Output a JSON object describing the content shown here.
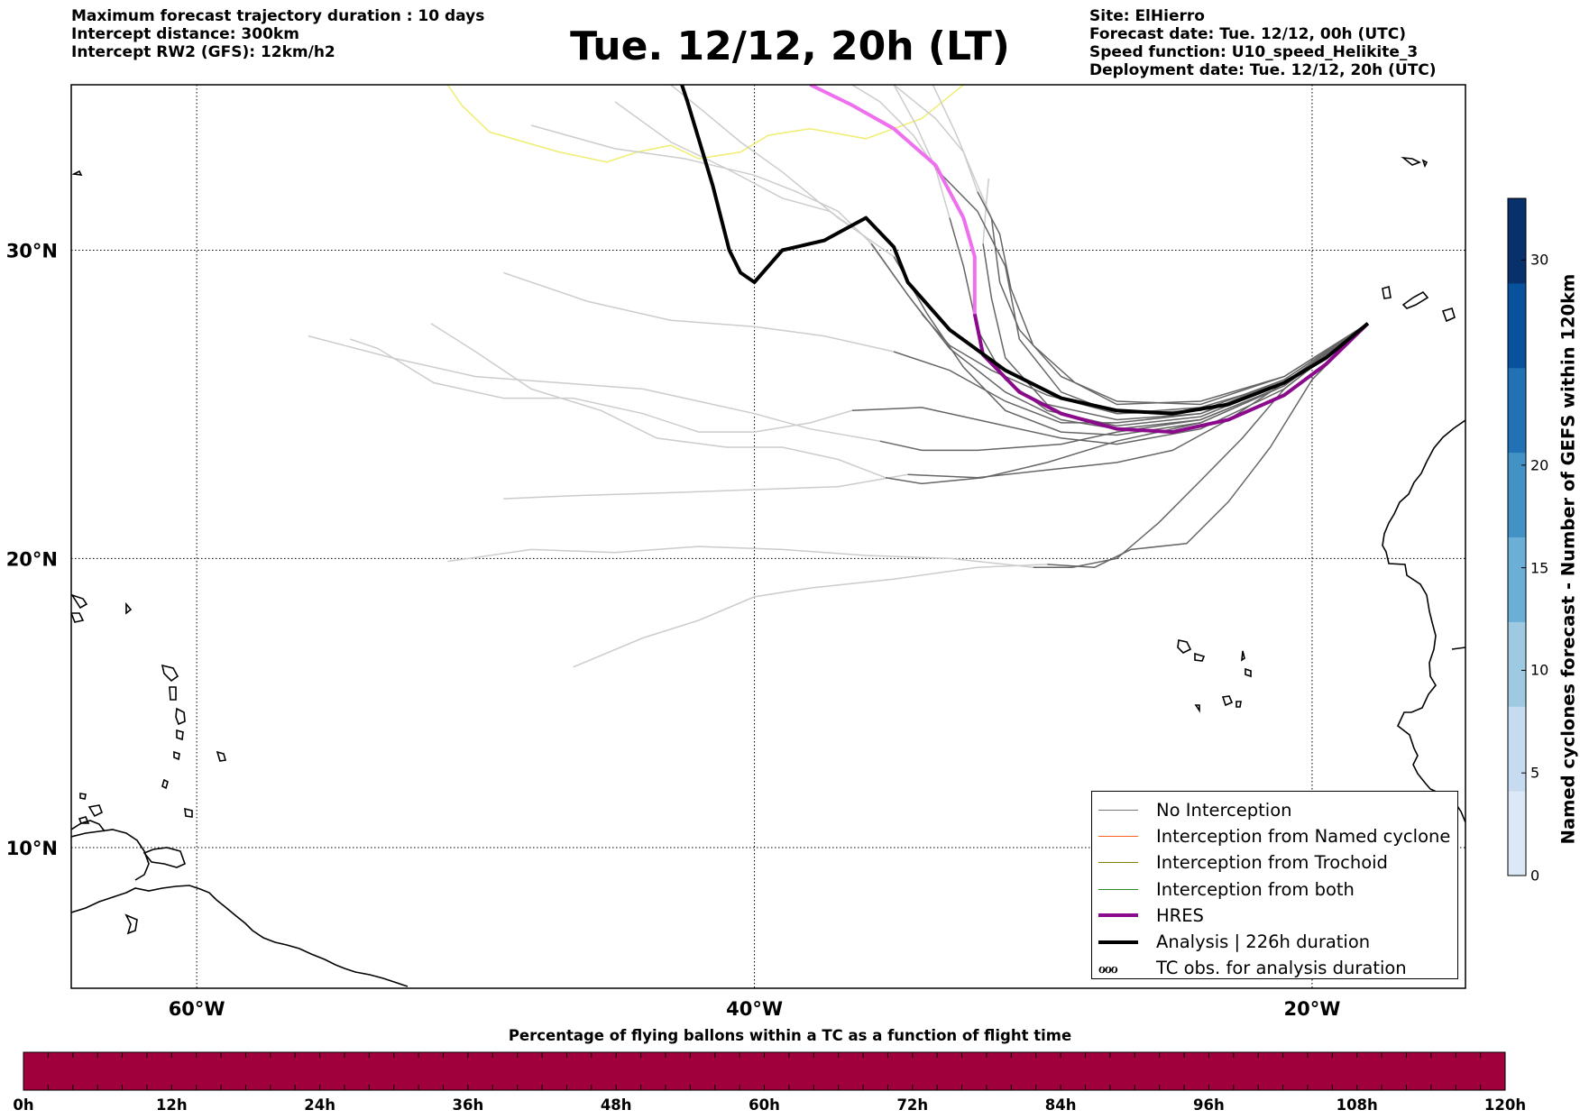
{
  "header": {
    "left_lines": [
      "Maximum forecast trajectory duration : 10 days",
      "Intercept distance: 300km",
      "Intercept RW2 (GFS):  12km/h2"
    ],
    "title": "Tue. 12/12, 20h (LT)",
    "right_lines": [
      "Site: ElHierro",
      "Forecast date: Tue. 12/12, 00h (UTC)",
      "Speed function: U10_speed_Helikite_3",
      "Deployment date: Tue. 12/12, 20h (UTC)"
    ]
  },
  "map": {
    "lon_range": [
      -64.5,
      -14.5
    ],
    "lat_range": [
      5,
      35
    ],
    "lon_ticks": [
      {
        "value": -60,
        "label": "60°W"
      },
      {
        "value": -40,
        "label": "40°W"
      },
      {
        "value": -20,
        "label": "20°W"
      }
    ],
    "lat_ticks": [
      {
        "value": 30,
        "label": "30°N"
      },
      {
        "value": 20,
        "label": "20°N"
      },
      {
        "value": 10,
        "label": "10°N"
      }
    ],
    "grid": true,
    "launch_site": {
      "name": "ElHierro",
      "lon": -18.0,
      "lat": 27.7
    },
    "colors": {
      "no_interception": "#666666",
      "no_interception_faded": "#cccccc",
      "named_cyclone": "#ff6020",
      "trochoid": "#808000",
      "both": "#2a8a2a",
      "hres": "#8b0a8b",
      "hres_faded": "#ee70ee",
      "analysis": "#000000",
      "yellow_track": "#eeee70"
    }
  },
  "legend": {
    "position": "lower-right",
    "items": [
      {
        "label": "No Interception",
        "color": "#777777",
        "width": 1.5,
        "kind": "line"
      },
      {
        "label": "Interception from Named cyclone",
        "color": "#ff6020",
        "width": 1.5,
        "kind": "line"
      },
      {
        "label": "Interception from Trochoid",
        "color": "#808000",
        "width": 1.5,
        "kind": "line"
      },
      {
        "label": "Interception from both",
        "color": "#2a8a2a",
        "width": 1.5,
        "kind": "line"
      },
      {
        "label": "HRES",
        "color": "#8b0a8b",
        "width": 4,
        "kind": "line"
      },
      {
        "label": "Analysis | 226h duration",
        "color": "#000000",
        "width": 4,
        "kind": "line"
      },
      {
        "label": "TC obs. for analysis duration",
        "glyph": "ℴℴℴ",
        "kind": "symbol"
      }
    ]
  },
  "bottom_colorbar": {
    "title": "Percentage of flying ballons within a TC as a function of flight time",
    "ticks": [
      "0h",
      "12h",
      "24h",
      "36h",
      "48h",
      "60h",
      "72h",
      "84h",
      "96h",
      "108h",
      "120h"
    ],
    "fill_color": "#a0003c"
  },
  "right_colorbar": {
    "title": "Named cyclones forecast - Number of GEFS within 120km",
    "range": [
      0,
      33
    ],
    "ticks": [
      0,
      5,
      10,
      15,
      20,
      30
    ],
    "colors": [
      "#dbe9f6",
      "#c6dbef",
      "#9ecae1",
      "#6baed6",
      "#4292c6",
      "#2171b5",
      "#08519c",
      "#08306b"
    ]
  },
  "chart_data": {
    "type": "trajectory-map",
    "launch": {
      "lon": -18.0,
      "lat": 27.7
    },
    "analysis": [
      [
        -18.0,
        27.7
      ],
      [
        -19.5,
        26.6
      ],
      [
        -21,
        25.8
      ],
      [
        -23,
        25.1
      ],
      [
        -25,
        24.8
      ],
      [
        -27,
        24.9
      ],
      [
        -29,
        25.3
      ],
      [
        -31,
        26.2
      ],
      [
        -33,
        27.5
      ],
      [
        -34.5,
        29
      ],
      [
        -35,
        30.1
      ],
      [
        -36,
        31
      ],
      [
        -37.5,
        30.3
      ],
      [
        -39,
        30
      ],
      [
        -40,
        29
      ],
      [
        -40.5,
        29.3
      ],
      [
        -40.9,
        30
      ],
      [
        -41.5,
        32
      ],
      [
        -42.4,
        34.5
      ],
      [
        -42.6,
        35
      ]
    ],
    "hres": [
      [
        -18.0,
        27.7
      ],
      [
        -19.5,
        26.4
      ],
      [
        -21,
        25.4
      ],
      [
        -23,
        24.6
      ],
      [
        -25,
        24.2
      ],
      [
        -27,
        24.3
      ],
      [
        -29,
        24.8
      ],
      [
        -30.5,
        25.5
      ],
      [
        -31.8,
        26.7
      ],
      [
        -32.1,
        28
      ],
      [
        -32.1,
        29.8
      ],
      [
        -32.5,
        31
      ],
      [
        -33.5,
        32.6
      ],
      [
        -35,
        33.7
      ],
      [
        -36.5,
        34.4
      ],
      [
        -38,
        35
      ]
    ],
    "ensemble_no_interception": [
      [
        [
          -18,
          27.7
        ],
        [
          -21,
          25.7
        ],
        [
          -24,
          24.5
        ],
        [
          -27,
          23.9
        ],
        [
          -29.5,
          23.2
        ],
        [
          -31.8,
          22.7
        ],
        [
          -34,
          22.5
        ],
        [
          -35.3,
          22.7
        ]
      ],
      [
        [
          -18,
          27.7
        ],
        [
          -21,
          25.7
        ],
        [
          -24,
          24.6
        ],
        [
          -27,
          24.2
        ],
        [
          -29,
          23.8
        ],
        [
          -32,
          23.6
        ],
        [
          -34,
          23.6
        ],
        [
          -35.5,
          23.9
        ]
      ],
      [
        [
          -18,
          27.7
        ],
        [
          -21,
          25.6
        ],
        [
          -22.5,
          24
        ],
        [
          -24,
          22.6
        ],
        [
          -25.5,
          21.2
        ],
        [
          -27,
          20
        ],
        [
          -28.6,
          19.7
        ],
        [
          -30,
          19.7
        ]
      ],
      [
        [
          -18,
          27.7
        ],
        [
          -20,
          25.9
        ],
        [
          -21.5,
          23.7
        ],
        [
          -23,
          21.9
        ],
        [
          -24.5,
          20.5
        ],
        [
          -26.5,
          20.3
        ],
        [
          -27.8,
          19.7
        ],
        [
          -29.5,
          19.8
        ]
      ],
      [
        [
          -18,
          27.7
        ],
        [
          -21,
          25.8
        ],
        [
          -23,
          24.6
        ],
        [
          -25,
          23.6
        ],
        [
          -27,
          23.2
        ],
        [
          -30,
          22.9
        ],
        [
          -32,
          22.7
        ],
        [
          -34.5,
          22.8
        ]
      ],
      [
        [
          -18,
          27.7
        ],
        [
          -21,
          25.8
        ],
        [
          -24,
          25
        ],
        [
          -27,
          24.8
        ],
        [
          -29.5,
          25.4
        ],
        [
          -31.5,
          26.2
        ],
        [
          -33,
          27
        ],
        [
          -34,
          28
        ]
      ],
      [
        [
          -18,
          27.7
        ],
        [
          -21,
          26
        ],
        [
          -24,
          25.1
        ],
        [
          -27,
          25.2
        ],
        [
          -29,
          26
        ],
        [
          -30.5,
          27.5
        ],
        [
          -31.2,
          29
        ],
        [
          -31.5,
          31
        ]
      ],
      [
        [
          -18,
          27.7
        ],
        [
          -21,
          25.9
        ],
        [
          -24,
          24.8
        ],
        [
          -27,
          24.5
        ],
        [
          -29,
          24.5
        ],
        [
          -31,
          25.2
        ],
        [
          -33,
          26.2
        ],
        [
          -35,
          26.8
        ]
      ],
      [
        [
          -18,
          27.7
        ],
        [
          -21,
          25.8
        ],
        [
          -24,
          24.7
        ],
        [
          -27,
          24.4
        ],
        [
          -29.5,
          24.9
        ],
        [
          -31,
          25.9
        ],
        [
          -32,
          27.5
        ],
        [
          -32.5,
          29.5
        ],
        [
          -33,
          31
        ]
      ],
      [
        [
          -18,
          27.7
        ],
        [
          -21,
          25.7
        ],
        [
          -24,
          24.5
        ],
        [
          -27,
          24.1
        ],
        [
          -29,
          24.2
        ],
        [
          -31,
          24.9
        ],
        [
          -32.5,
          26.3
        ],
        [
          -33.8,
          28
        ],
        [
          -35,
          29.8
        ]
      ],
      [
        [
          -18,
          27.7
        ],
        [
          -21,
          25.8
        ],
        [
          -24,
          24.8
        ],
        [
          -27,
          24.6
        ],
        [
          -29.5,
          25.1
        ],
        [
          -31,
          26.6
        ],
        [
          -31.5,
          28.5
        ],
        [
          -31.8,
          30.2
        ]
      ],
      [
        [
          -18,
          27.7
        ],
        [
          -21,
          26
        ],
        [
          -24,
          25.2
        ],
        [
          -27,
          25.1
        ],
        [
          -28.5,
          25.8
        ],
        [
          -30,
          27
        ],
        [
          -30.8,
          28.8
        ],
        [
          -31.2,
          30.5
        ],
        [
          -32,
          31.8
        ]
      ],
      [
        [
          -18,
          27.7
        ],
        [
          -21,
          25.9
        ],
        [
          -24,
          24.9
        ],
        [
          -27,
          24.8
        ],
        [
          -29,
          25.5
        ],
        [
          -30.5,
          27.2
        ],
        [
          -31,
          29.5
        ],
        [
          -32,
          31.2
        ],
        [
          -33.5,
          32.5
        ]
      ],
      [
        [
          -18,
          27.7
        ],
        [
          -21,
          25.6
        ],
        [
          -24,
          24.3
        ],
        [
          -27,
          23.8
        ],
        [
          -29,
          24
        ],
        [
          -31.5,
          24.5
        ],
        [
          -34,
          25
        ],
        [
          -36.5,
          24.9
        ]
      ],
      [
        [
          -18,
          27.7
        ],
        [
          -21,
          25.7
        ],
        [
          -24,
          24.6
        ],
        [
          -27,
          24.3
        ],
        [
          -29,
          24.6
        ],
        [
          -31,
          25.5
        ],
        [
          -33,
          26.9
        ],
        [
          -34.5,
          28.6
        ],
        [
          -35.8,
          30.2
        ]
      ]
    ],
    "ensemble_faded": [
      [
        [
          -35.3,
          22.7
        ],
        [
          -37,
          23.3
        ],
        [
          -39,
          23.7
        ],
        [
          -41,
          23.7
        ],
        [
          -43.5,
          24
        ],
        [
          -45.5,
          24.9
        ],
        [
          -48,
          25.6
        ],
        [
          -50,
          26.8
        ],
        [
          -51.6,
          27.7
        ]
      ],
      [
        [
          -35.5,
          23.9
        ],
        [
          -38,
          24.3
        ],
        [
          -40,
          24.8
        ],
        [
          -42,
          25.2
        ],
        [
          -44,
          25.6
        ],
        [
          -47,
          25.8
        ],
        [
          -50,
          26
        ],
        [
          -53,
          26.6
        ],
        [
          -56,
          27.3
        ]
      ],
      [
        [
          -30,
          19.7
        ],
        [
          -33,
          20
        ],
        [
          -36,
          20.1
        ],
        [
          -39,
          20.3
        ],
        [
          -42,
          20.4
        ],
        [
          -45,
          20.2
        ],
        [
          -48,
          20.3
        ],
        [
          -51,
          19.9
        ]
      ],
      [
        [
          -29.5,
          19.8
        ],
        [
          -32,
          19.7
        ],
        [
          -35,
          19.3
        ],
        [
          -38,
          19
        ],
        [
          -40,
          18.7
        ],
        [
          -42,
          17.9
        ],
        [
          -44,
          17.3
        ],
        [
          -46.5,
          16.3
        ]
      ],
      [
        [
          -34.5,
          22.8
        ],
        [
          -37,
          22.4
        ],
        [
          -40,
          22.3
        ],
        [
          -43,
          22.2
        ],
        [
          -46.5,
          22.1
        ],
        [
          -49,
          22
        ]
      ],
      [
        [
          -34,
          28
        ],
        [
          -35,
          29.2
        ],
        [
          -36,
          30.4
        ],
        [
          -37.3,
          31.2
        ],
        [
          -39,
          31.6
        ],
        [
          -41,
          32.5
        ],
        [
          -43,
          33.3
        ],
        [
          -45,
          34.5
        ]
      ],
      [
        [
          -31.5,
          31
        ],
        [
          -32.1,
          32.2
        ],
        [
          -32.8,
          33.6
        ],
        [
          -33.6,
          35
        ]
      ],
      [
        [
          -35,
          26.8
        ],
        [
          -37.5,
          27.3
        ],
        [
          -40,
          27.6
        ],
        [
          -43,
          27.8
        ],
        [
          -46,
          28.4
        ],
        [
          -49,
          29.3
        ]
      ],
      [
        [
          -33,
          31
        ],
        [
          -33.5,
          32.5
        ],
        [
          -34.2,
          33.8
        ],
        [
          -35,
          35
        ]
      ],
      [
        [
          -35,
          29.8
        ],
        [
          -37,
          31
        ],
        [
          -39,
          32.4
        ],
        [
          -40.5,
          33.3
        ],
        [
          -41.8,
          34.2
        ],
        [
          -43,
          35
        ]
      ],
      [
        [
          -31.8,
          30.2
        ],
        [
          -31.7,
          31.3
        ],
        [
          -31.6,
          32.2
        ]
      ],
      [
        [
          -32,
          31.8
        ],
        [
          -32.5,
          33
        ],
        [
          -33.5,
          34
        ],
        [
          -35,
          35
        ]
      ],
      [
        [
          -33.5,
          32.5
        ],
        [
          -34.3,
          33.5
        ],
        [
          -35.5,
          34.5
        ],
        [
          -36.5,
          35
        ]
      ],
      [
        [
          -36.5,
          24.9
        ],
        [
          -38,
          24.5
        ],
        [
          -40,
          24.2
        ],
        [
          -42,
          24.2
        ],
        [
          -44,
          24.8
        ],
        [
          -46.5,
          25.3
        ],
        [
          -49,
          25.3
        ],
        [
          -51.5,
          25.8
        ],
        [
          -53.5,
          26.9
        ],
        [
          -54.5,
          27.2
        ]
      ],
      [
        [
          -35.8,
          30.2
        ],
        [
          -37,
          31.2
        ],
        [
          -38.5,
          31.8
        ],
        [
          -40,
          32.3
        ],
        [
          -42.5,
          32.8
        ],
        [
          -45,
          33.1
        ],
        [
          -48,
          33.8
        ]
      ]
    ],
    "yellow_track": [
      [
        -32.5,
        35
      ],
      [
        -34,
        34
      ],
      [
        -36,
        33.4
      ],
      [
        -38,
        33.7
      ],
      [
        -39.5,
        33.5
      ],
      [
        -40.5,
        33
      ],
      [
        -42,
        32.8
      ],
      [
        -43,
        33.2
      ],
      [
        -44.2,
        33
      ],
      [
        -45.3,
        32.7
      ],
      [
        -47,
        33
      ],
      [
        -49.5,
        33.6
      ],
      [
        -50.5,
        34.4
      ],
      [
        -51,
        35
      ]
    ]
  }
}
